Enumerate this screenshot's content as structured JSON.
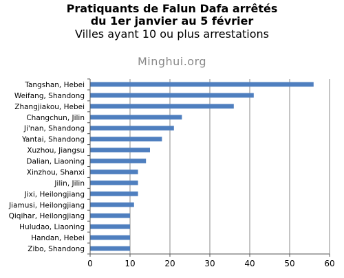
{
  "header": {
    "title_line1": "Pratiquants de Falun Dafa arrêtés",
    "title_line2": "du 1er janvier au 5 février",
    "subtitle": "Villes ayant 10 ou plus arrestations"
  },
  "watermark": "Minghui.org",
  "colors": {
    "bar": "#4f7fbf",
    "grid": "#888888",
    "axis": "#555555"
  },
  "chart_data": {
    "type": "bar",
    "orientation": "horizontal",
    "categories": [
      "Tangshan, Hebei",
      "Weifang, Shandong",
      "Zhangjiakou, Hebei",
      "Changchun, Jilin",
      "Ji'nan, Shandong",
      "Yantai, Shandong",
      "Xuzhou, Jiangsu",
      "Dalian, Liaoning",
      "Xinzhou, Shanxi",
      "Jilin, Jilin",
      "Jixi, Heilongjiang",
      "Jiamusi, Heilongjiang",
      "Qiqihar, Heilongjiang",
      "Huludao, Liaoning",
      "Handan, Hebei",
      "Zibo, Shandong"
    ],
    "values": [
      56,
      41,
      36,
      23,
      21,
      18,
      15,
      14,
      12,
      12,
      12,
      11,
      10,
      10,
      10,
      10
    ],
    "xlim": [
      0,
      60
    ],
    "xticks": [
      "0",
      "10",
      "20",
      "30",
      "40",
      "50",
      "60"
    ],
    "grid": "vertical",
    "legend": "none"
  }
}
